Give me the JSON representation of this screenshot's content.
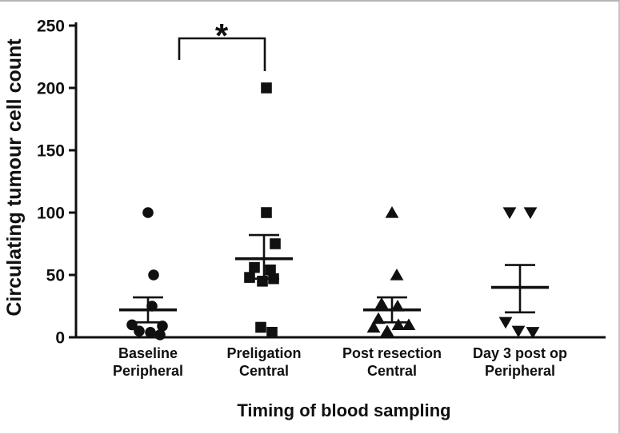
{
  "chart_data": {
    "type": "scatter",
    "title": "",
    "xlabel": "Timing of blood sampling",
    "ylabel": "Circulating tumour cell count",
    "ylim": [
      0,
      250
    ],
    "yticks": [
      0,
      50,
      100,
      150,
      200,
      250
    ],
    "grid": false,
    "legend": "none",
    "marker_color": "#111111",
    "groups": [
      {
        "label": [
          "Baseline",
          "Peripheral"
        ],
        "marker": "circle",
        "mean": 22,
        "err_low": 12,
        "err_high": 32,
        "points": [
          {
            "value": 100,
            "dx": 0
          },
          {
            "value": 50,
            "dx": 7
          },
          {
            "value": 25,
            "dx": 5
          },
          {
            "value": 10,
            "dx": -20
          },
          {
            "value": 9,
            "dx": 18
          },
          {
            "value": 5,
            "dx": -11
          },
          {
            "value": 4,
            "dx": 3
          },
          {
            "value": 2,
            "dx": 15
          }
        ]
      },
      {
        "label": [
          "Preligation",
          "Central"
        ],
        "marker": "square",
        "mean": 63,
        "err_low": 47,
        "err_high": 82,
        "points": [
          {
            "value": 200,
            "dx": 3
          },
          {
            "value": 100,
            "dx": 3
          },
          {
            "value": 75,
            "dx": 14
          },
          {
            "value": 56,
            "dx": -12
          },
          {
            "value": 54,
            "dx": 8
          },
          {
            "value": 48,
            "dx": -18
          },
          {
            "value": 47,
            "dx": 12
          },
          {
            "value": 45,
            "dx": -2
          },
          {
            "value": 8,
            "dx": -4
          },
          {
            "value": 4,
            "dx": 10
          }
        ]
      },
      {
        "label": [
          "Post resection",
          "Central"
        ],
        "marker": "triangle-up",
        "mean": 22,
        "err_low": 12,
        "err_high": 32,
        "points": [
          {
            "value": 100,
            "dx": 0
          },
          {
            "value": 50,
            "dx": 6
          },
          {
            "value": 27,
            "dx": -13
          },
          {
            "value": 25,
            "dx": 7
          },
          {
            "value": 15,
            "dx": -17
          },
          {
            "value": 10,
            "dx": 8
          },
          {
            "value": 10,
            "dx": 21
          },
          {
            "value": 8,
            "dx": -23
          },
          {
            "value": 5,
            "dx": -6
          }
        ]
      },
      {
        "label": [
          "Day 3 post op",
          "Peripheral"
        ],
        "marker": "triangle-down",
        "mean": 40,
        "err_low": 20,
        "err_high": 58,
        "points": [
          {
            "value": 100,
            "dx": -13
          },
          {
            "value": 100,
            "dx": 13
          },
          {
            "value": 12,
            "dx": -18
          },
          {
            "value": 5,
            "dx": -2
          },
          {
            "value": 4,
            "dx": 16
          }
        ]
      }
    ],
    "significance": {
      "between": [
        "Baseline Peripheral",
        "Preligation Central"
      ],
      "label": "*"
    }
  }
}
